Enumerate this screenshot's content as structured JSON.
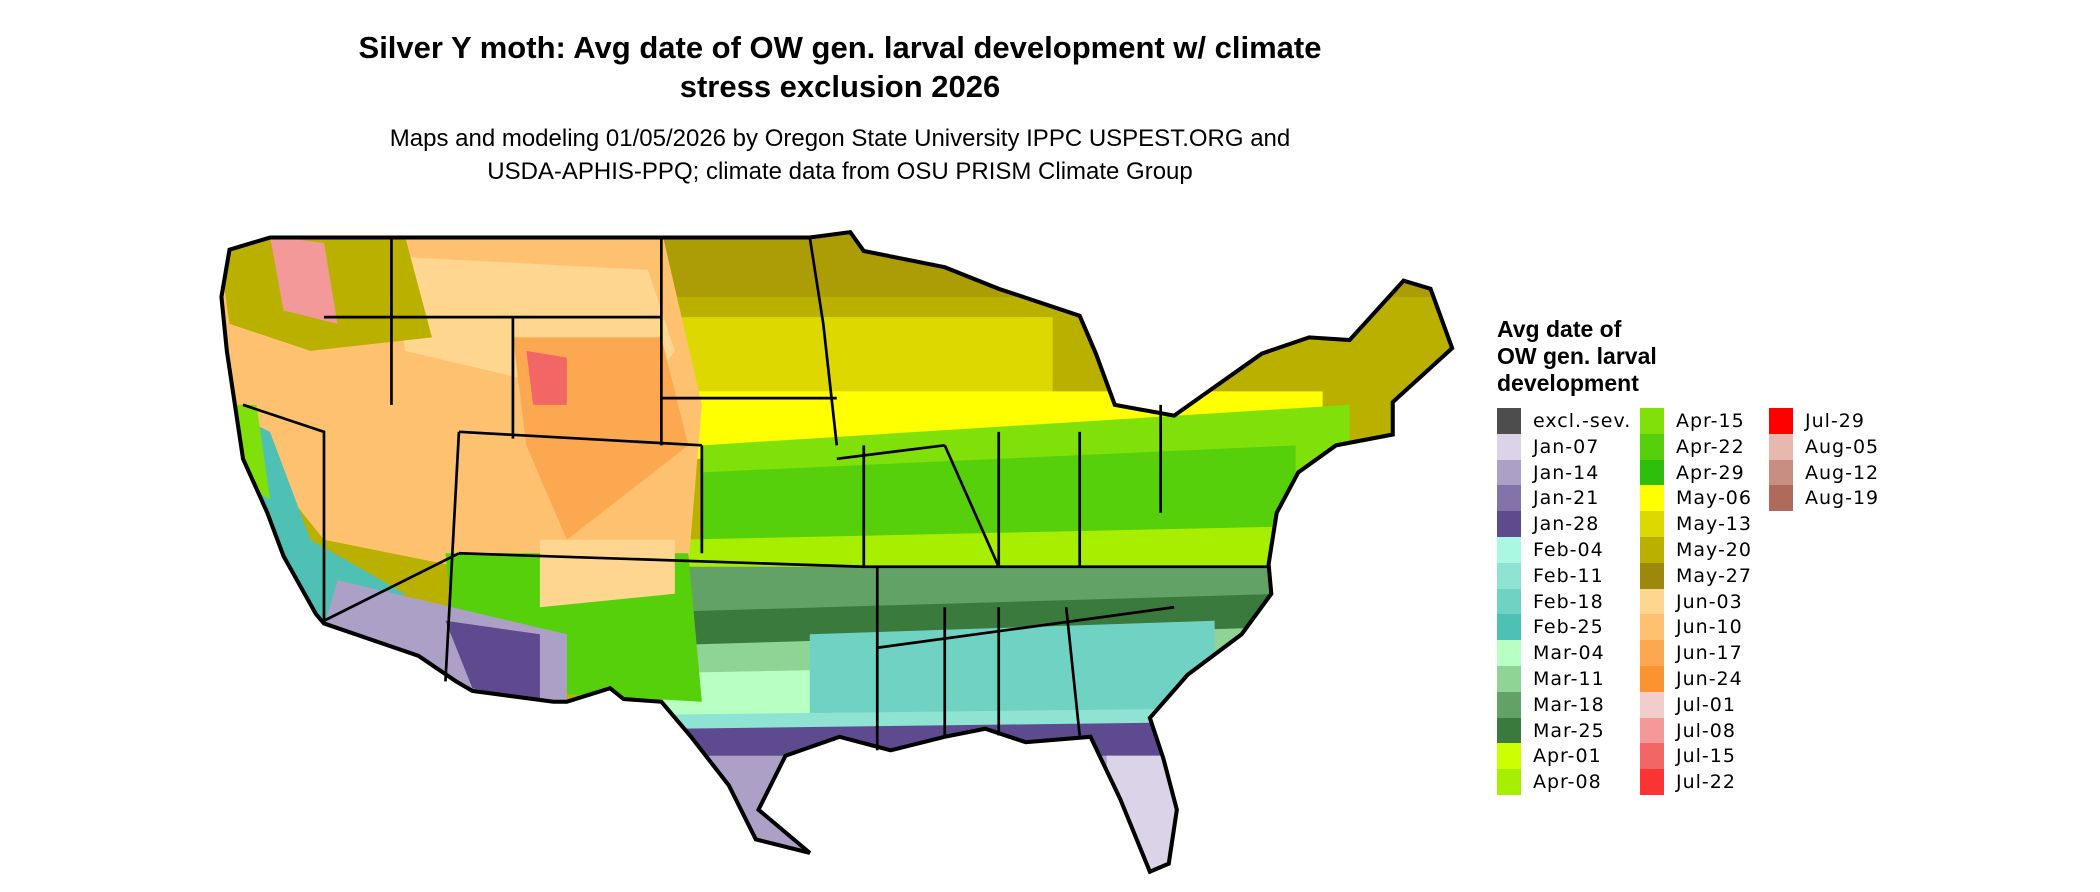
{
  "title": {
    "line1": "Silver Y moth: Avg date of OW gen. larval development w/ climate",
    "line2": "stress exclusion 2026"
  },
  "subtitle": {
    "line1": "Maps and modeling 01/05/2026 by Oregon State University IPPC USPEST.ORG and",
    "line2": "USDA-APHIS-PPQ; climate data from OSU PRISM Climate Group"
  },
  "legend": {
    "title_lines": [
      "Avg date of",
      "OW gen. larval",
      "development"
    ],
    "items": [
      {
        "label": "excl.-sev.",
        "color": "#4d4d4d"
      },
      {
        "label": "Jan-07",
        "color": "#dbd3e8"
      },
      {
        "label": "Jan-14",
        "color": "#ada0c7"
      },
      {
        "label": "Jan-21",
        "color": "#8273aa"
      },
      {
        "label": "Jan-28",
        "color": "#5e4a8e"
      },
      {
        "label": "Feb-04",
        "color": "#aaf7e2"
      },
      {
        "label": "Feb-11",
        "color": "#8fe3d2"
      },
      {
        "label": "Feb-18",
        "color": "#6fd2c2"
      },
      {
        "label": "Feb-25",
        "color": "#4fc1b4"
      },
      {
        "label": "Mar-04",
        "color": "#b7ffc2"
      },
      {
        "label": "Mar-11",
        "color": "#8fd494"
      },
      {
        "label": "Mar-18",
        "color": "#63a266"
      },
      {
        "label": "Mar-25",
        "color": "#3a7a3d"
      },
      {
        "label": "Apr-01",
        "color": "#ccff00"
      },
      {
        "label": "Apr-08",
        "color": "#a8ee00"
      },
      {
        "label": "Apr-15",
        "color": "#80e00a"
      },
      {
        "label": "Apr-22",
        "color": "#55d00a"
      },
      {
        "label": "Apr-29",
        "color": "#2ebe0c"
      },
      {
        "label": "May-06",
        "color": "#ffff00"
      },
      {
        "label": "May-13",
        "color": "#dcd800"
      },
      {
        "label": "May-20",
        "color": "#bab000"
      },
      {
        "label": "May-27",
        "color": "#9e880c"
      },
      {
        "label": "Jun-03",
        "color": "#fed690"
      },
      {
        "label": "Jun-10",
        "color": "#fdc170"
      },
      {
        "label": "Jun-17",
        "color": "#fba850"
      },
      {
        "label": "Jun-24",
        "color": "#fb9330"
      },
      {
        "label": "Jul-01",
        "color": "#f3cccc"
      },
      {
        "label": "Jul-08",
        "color": "#f39999"
      },
      {
        "label": "Jul-15",
        "color": "#f36666"
      },
      {
        "label": "Jul-22",
        "color": "#fb3333"
      },
      {
        "label": "Jul-29",
        "color": "#ff0000"
      },
      {
        "label": "Aug-05",
        "color": "#e6b8b0"
      },
      {
        "label": "Aug-12",
        "color": "#c98d82"
      },
      {
        "label": "Aug-19",
        "color": "#b06a5c"
      }
    ]
  }
}
